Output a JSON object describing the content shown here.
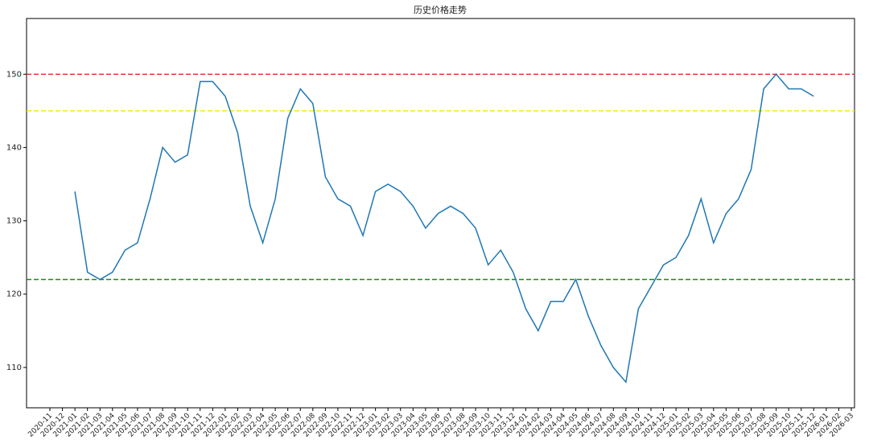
{
  "chart_data": {
    "type": "line",
    "title": "历史价格走势",
    "categories": [
      "2020-11",
      "2020-12",
      "2021-01",
      "2021-02",
      "2021-03",
      "2021-04",
      "2021-05",
      "2021-06",
      "2021-07",
      "2021-08",
      "2021-09",
      "2021-10",
      "2021-11",
      "2021-12",
      "2022-01",
      "2022-02",
      "2022-03",
      "2022-04",
      "2022-05",
      "2022-06",
      "2022-07",
      "2022-08",
      "2022-09",
      "2022-10",
      "2022-11",
      "2022-12",
      "2023-01",
      "2023-02",
      "2023-03",
      "2023-04",
      "2023-05",
      "2023-06",
      "2023-07",
      "2023-08",
      "2023-09",
      "2023-10",
      "2023-11",
      "2023-12",
      "2024-01",
      "2024-02",
      "2024-03",
      "2024-04",
      "2024-05",
      "2024-06",
      "2024-07",
      "2024-08",
      "2024-09",
      "2024-10",
      "2024-11",
      "2024-12",
      "2025-01",
      "2025-02",
      "2025-03",
      "2025-04",
      "2025-05",
      "2025-06",
      "2025-07",
      "2025-08",
      "2025-09",
      "2025-10",
      "2025-11",
      "2025-12",
      "2026-01",
      "2026-02",
      "2026-03"
    ],
    "x": [
      "2021-01",
      "2021-02",
      "2021-03",
      "2021-04",
      "2021-05",
      "2021-06",
      "2021-07",
      "2021-08",
      "2021-09",
      "2021-10",
      "2021-11",
      "2021-12",
      "2022-01",
      "2022-02",
      "2022-03",
      "2022-04",
      "2022-05",
      "2022-06",
      "2022-07",
      "2022-08",
      "2022-09",
      "2022-10",
      "2022-11",
      "2022-12",
      "2023-01",
      "2023-02",
      "2023-03",
      "2023-04",
      "2023-05",
      "2023-06",
      "2023-07",
      "2023-08",
      "2023-09",
      "2023-10",
      "2023-11",
      "2023-12",
      "2024-01",
      "2024-02",
      "2024-03",
      "2024-04",
      "2024-05",
      "2024-06",
      "2024-07",
      "2024-08",
      "2024-09",
      "2024-10",
      "2024-11",
      "2024-12",
      "2025-01",
      "2025-02",
      "2025-03",
      "2025-04",
      "2025-05",
      "2025-06",
      "2025-07",
      "2025-08",
      "2025-09",
      "2025-10",
      "2025-11",
      "2025-12"
    ],
    "values": [
      134,
      123,
      122,
      123,
      126,
      127,
      133,
      140,
      138,
      139,
      149,
      149,
      147,
      142,
      132,
      127,
      133,
      144,
      148,
      146,
      136,
      133,
      132,
      128,
      134,
      135,
      134,
      132,
      129,
      131,
      132,
      131,
      129,
      124,
      126,
      123,
      118,
      115,
      119,
      119,
      122,
      117,
      113,
      110,
      108,
      118,
      121,
      124,
      125,
      128,
      133,
      127,
      131,
      133,
      137,
      148,
      150,
      148,
      148,
      147
    ],
    "color": "#1f77b4",
    "hlines": [
      {
        "value": 150,
        "color": "#e8282b"
      },
      {
        "value": 145,
        "color": "#f5e500"
      },
      {
        "value": 122,
        "color": "#1a8a1a"
      }
    ],
    "ylim": [
      104.5,
      157.6
    ],
    "yticks": [
      110,
      120,
      130,
      140,
      150
    ]
  }
}
